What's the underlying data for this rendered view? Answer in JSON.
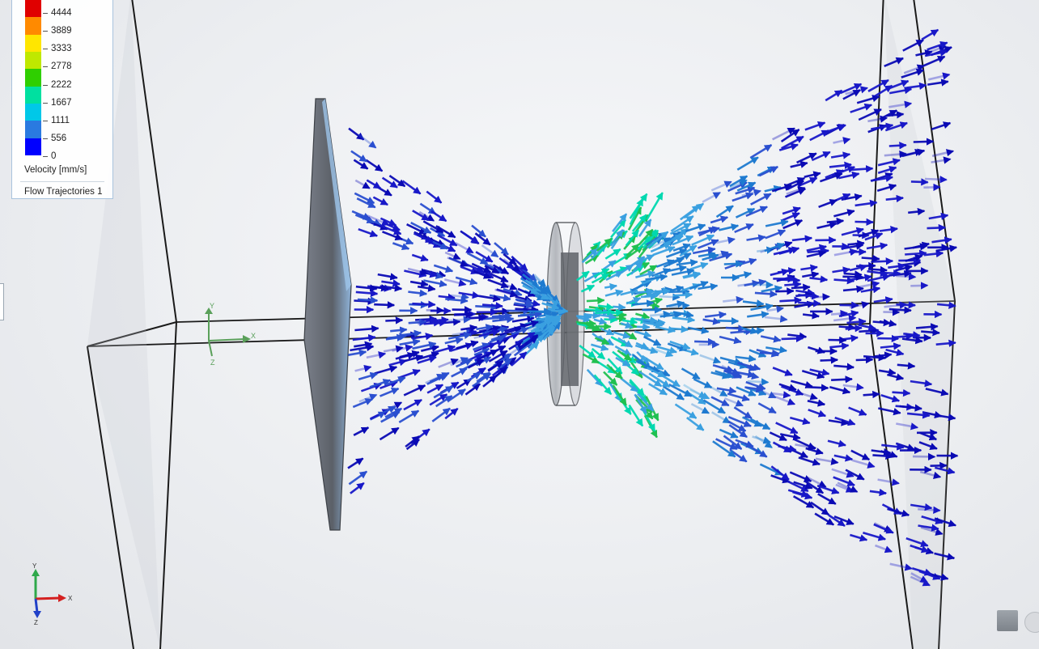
{
  "legend": {
    "ticks": [
      "4444",
      "3889",
      "3333",
      "2778",
      "2222",
      "1667",
      "1111",
      "556",
      "0"
    ],
    "quantity_label": "Velocity [mm/s]",
    "plot_name": "Flow Trajectories 1",
    "colors": [
      "#e00000",
      "#ff8a00",
      "#ffe600",
      "#bfe800",
      "#2fcf00",
      "#00e0a0",
      "#00c8e8",
      "#2a7ae0",
      "#0000ff"
    ]
  },
  "triad_large": {
    "x": "X",
    "y": "Y",
    "z": "Z"
  },
  "triad_small": {
    "x": "X",
    "y": "Y",
    "z": "Z"
  },
  "colors": {
    "background": "#eceef1",
    "arrow_slow": "#0a0ab4",
    "arrow_mid": "#1e7ad0",
    "arrow_fast": "#00d8b0",
    "plate": "#5b6068"
  }
}
